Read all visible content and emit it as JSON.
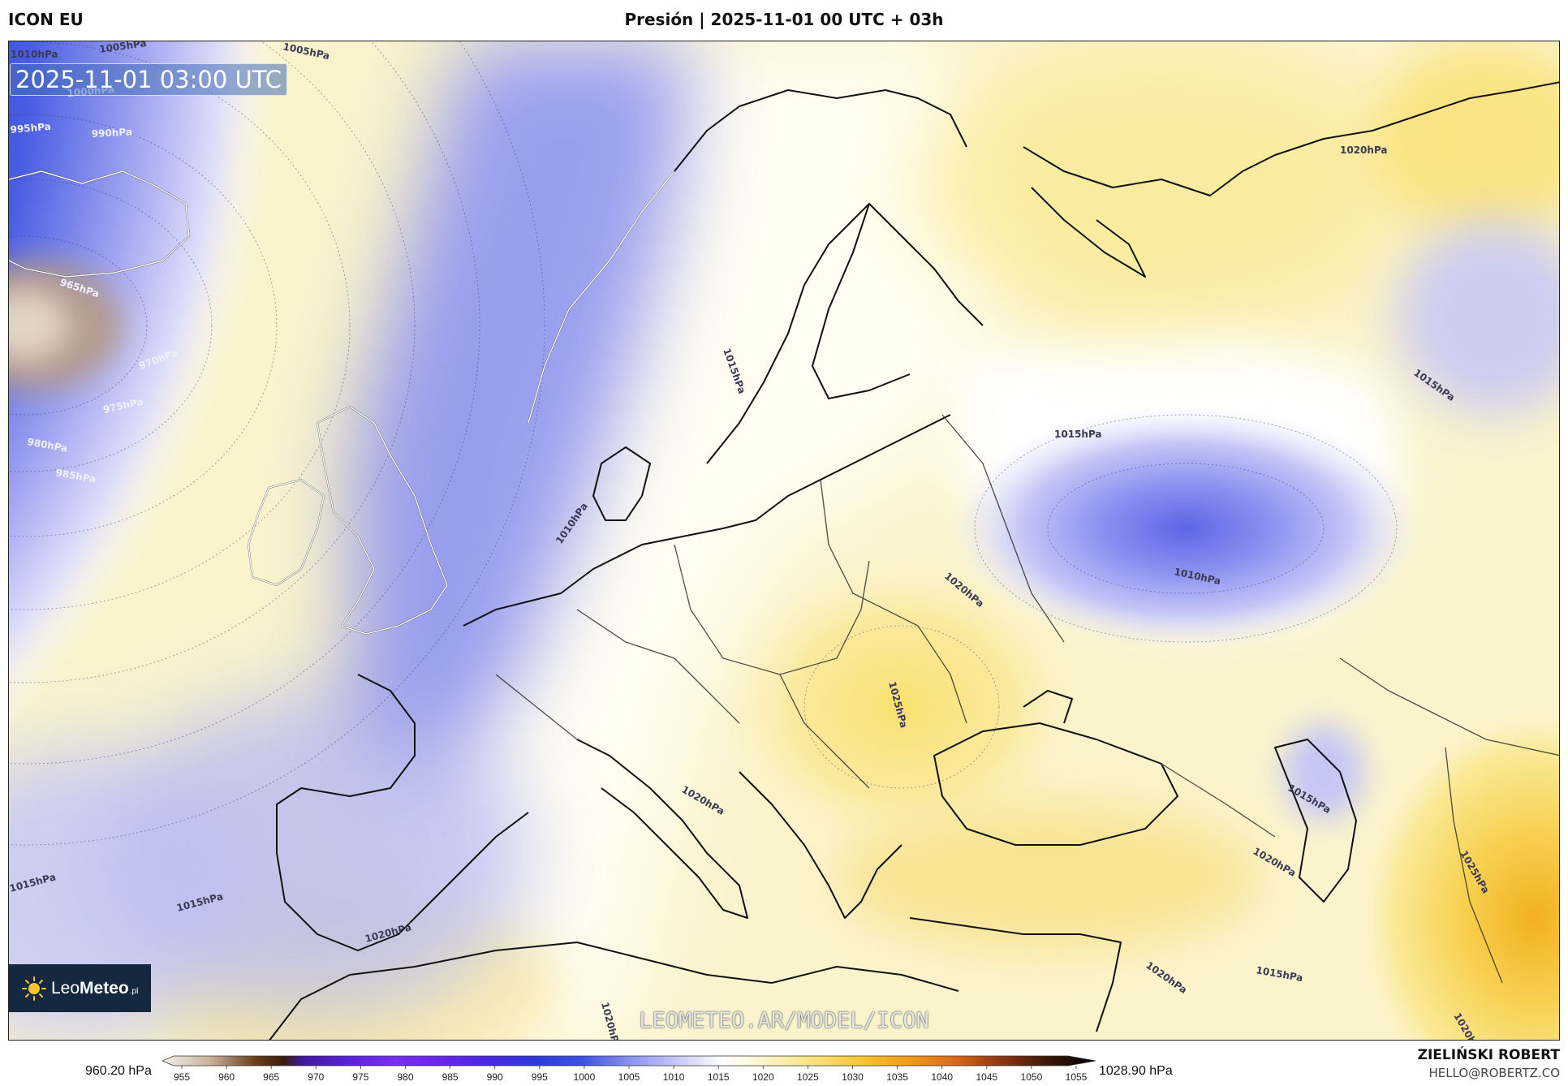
{
  "header": {
    "model": "ICON EU",
    "title": "Presión | 2025-11-01 00 UTC + 03h"
  },
  "map": {
    "timestamp": "2025-11-01 03:00 UTC",
    "watermark": "LEOMETEO.AR/MODEL/ICON",
    "logo": {
      "text_light": "Leo",
      "text_bold": "Meteo",
      "tld": ".pl"
    },
    "highs_lows": [
      {
        "kind": "low",
        "region": "west of Ireland",
        "core": 960
      },
      {
        "kind": "low",
        "region": "southern Russia / Ukraine",
        "core": 1010
      },
      {
        "kind": "high",
        "region": "Romania / Carpathians",
        "core": 1025
      },
      {
        "kind": "high",
        "region": "Iran / Caspian east",
        "core": 1025
      }
    ],
    "isobar_labels": [
      "1010hPa",
      "1005hPa",
      "1005hPa",
      "1000hPa",
      "995hPa",
      "990hPa",
      "965hPa",
      "970hPa",
      "975hPa",
      "980hPa",
      "985hPa",
      "1010hPa",
      "1015hPa",
      "1020hPa",
      "1015hPa",
      "1015hPa",
      "1010hPa",
      "1020hPa",
      "1025hPa",
      "1020hPa",
      "1015hPa",
      "1020hPa",
      "1025hPa",
      "1015hPa",
      "1015hPa",
      "1020hPa",
      "1020hPa",
      "1015hPa",
      "1020hPa",
      "1020hPa"
    ],
    "colors": {
      "deep_low": "#3d1a08",
      "low_violet": "#6a20e0",
      "low_blue": "#2a36d8",
      "mid_lavender": "#c6c8f4",
      "neutral": "#ffffff",
      "high_cream": "#fbf4c8",
      "high_yellow": "#f8e070",
      "high_orange": "#f0a020"
    }
  },
  "colorbar": {
    "min_label": "960.20 hPa",
    "max_label": "1028.90 hPa",
    "ticks": [
      "955",
      "960",
      "965",
      "970",
      "975",
      "980",
      "985",
      "990",
      "995",
      "1000",
      "1005",
      "1010",
      "1015",
      "1020",
      "1025",
      "1030",
      "1035",
      "1040",
      "1045",
      "1050",
      "1055"
    ],
    "stops": [
      {
        "v": 955,
        "c": "#f5f0ea"
      },
      {
        "v": 960,
        "c": "#c9b39d"
      },
      {
        "v": 965,
        "c": "#6b3f1c"
      },
      {
        "v": 968,
        "c": "#3a1c0c"
      },
      {
        "v": 970,
        "c": "#3e1aa0"
      },
      {
        "v": 975,
        "c": "#5b22d8"
      },
      {
        "v": 980,
        "c": "#7a2ef0"
      },
      {
        "v": 985,
        "c": "#6a26ea"
      },
      {
        "v": 990,
        "c": "#4a2ae0"
      },
      {
        "v": 995,
        "c": "#2f3ad8"
      },
      {
        "v": 1000,
        "c": "#3c52e2"
      },
      {
        "v": 1005,
        "c": "#8a90ee"
      },
      {
        "v": 1010,
        "c": "#c4c6f6"
      },
      {
        "v": 1015,
        "c": "#ffffff"
      },
      {
        "v": 1020,
        "c": "#fbf2c4"
      },
      {
        "v": 1025,
        "c": "#f9e27a"
      },
      {
        "v": 1030,
        "c": "#f6c532"
      },
      {
        "v": 1035,
        "c": "#ef9a1c"
      },
      {
        "v": 1040,
        "c": "#d9681a"
      },
      {
        "v": 1045,
        "c": "#8a3412"
      },
      {
        "v": 1050,
        "c": "#3a1608"
      },
      {
        "v": 1055,
        "c": "#000000"
      }
    ]
  },
  "author": {
    "name": "ZIELIŃSKI ROBERT",
    "email": "HELLO@ROBERTZ.CO"
  }
}
